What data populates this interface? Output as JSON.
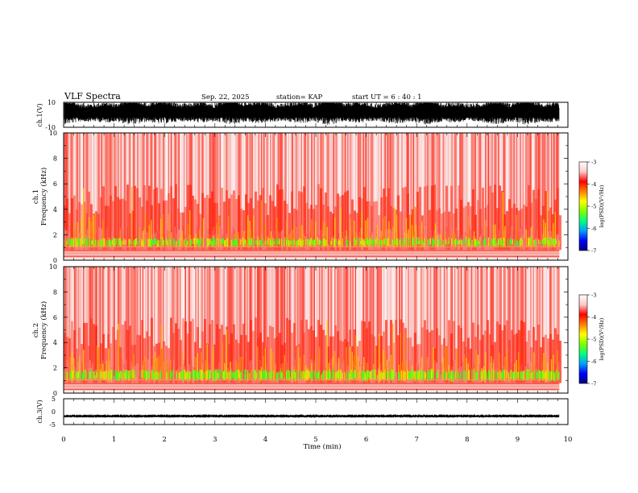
{
  "header": {
    "title": "VLF Spectra",
    "date": "Sep. 22, 2025",
    "station": "station= KAP",
    "start_ut": "start  UT =   6  : 40 : 1"
  },
  "colors": {
    "spectrogram_bg": "#f6b8b8",
    "colorscale": [
      "#000080",
      "#0000ff",
      "#00a0ff",
      "#00ff80",
      "#80ff00",
      "#ffff00",
      "#ff8000",
      "#ff0000",
      "#ffc8c8",
      "#ffffff"
    ],
    "waveform": "#000000"
  },
  "chart_data": [
    {
      "type": "line",
      "panel": "ch1-waveform",
      "ylabel": "ch.1(V)",
      "ylim": [
        -10,
        10
      ],
      "yticks": [
        "10",
        "-10"
      ],
      "x_range": [
        0,
        10
      ],
      "description_values": "dense broadband waveform filling approximately the -8 to 10 V range"
    },
    {
      "type": "heatmap",
      "panel": "ch1-spectrogram",
      "ylabel_channel": "ch.1",
      "ylabel": "Frequency  (kHz)",
      "ylim": [
        0,
        10
      ],
      "yticks": [
        "0",
        "2",
        "4",
        "6",
        "8",
        "10"
      ],
      "x_range": [
        0,
        10
      ],
      "colorbar": {
        "label": "log(PSD)(V²/Hz)",
        "ticks": [
          "-3",
          "-4",
          "-5",
          "-6",
          "-7"
        ],
        "range": [
          -7,
          -3
        ]
      }
    },
    {
      "type": "heatmap",
      "panel": "ch2-spectrogram",
      "ylabel_channel": "ch.2",
      "ylabel": "Frequency  (kHz)",
      "ylim": [
        0,
        10
      ],
      "yticks": [
        "0",
        "2",
        "4",
        "6",
        "8",
        "10"
      ],
      "x_range": [
        0,
        10
      ],
      "colorbar": {
        "label": "log(PSD)(V²/Hz)",
        "ticks": [
          "-3",
          "-4",
          "-5",
          "-6",
          "-7"
        ],
        "range": [
          -7,
          -3
        ]
      }
    },
    {
      "type": "line",
      "panel": "ch3-waveform",
      "ylabel": "ch.3(V)",
      "ylim": [
        -5,
        5
      ],
      "yticks": [
        "5",
        "0",
        "-5"
      ],
      "x_range": [
        0,
        10
      ],
      "description_values": "narrow band around -1.5 to -2 V across the full time span"
    }
  ],
  "xaxis": {
    "label": "Time  (min)",
    "ticks": [
      "0",
      "1",
      "2",
      "3",
      "4",
      "5",
      "6",
      "7",
      "8",
      "9",
      "10"
    ],
    "data_end": 9.83
  }
}
